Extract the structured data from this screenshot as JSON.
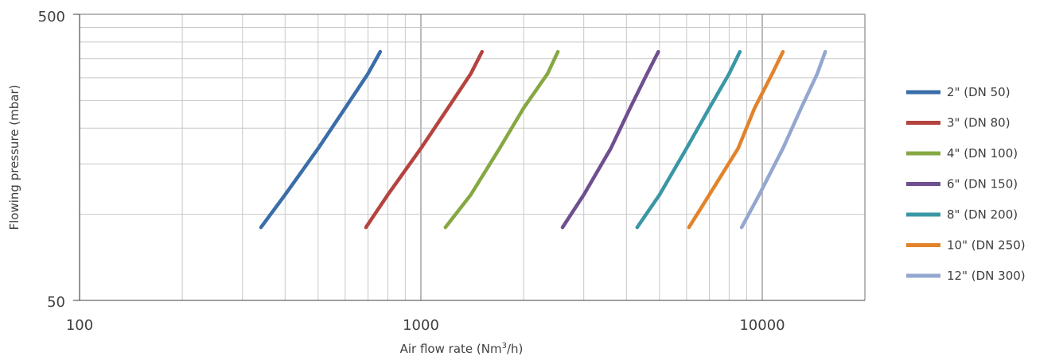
{
  "chart_data": {
    "type": "line",
    "x_scale": "log",
    "y_scale": "log",
    "xlim": [
      100,
      20000
    ],
    "ylim": [
      50,
      500
    ],
    "x_ticks": [
      "100",
      "1000",
      "10000"
    ],
    "y_ticks": [
      "500",
      "50"
    ],
    "xlabel_main": "Air flow rate (Nm",
    "xlabel_sup": "3",
    "xlabel_end": "/h)",
    "ylabel": "Flowing pressure (mbar)",
    "grid": true,
    "legend_position": "right",
    "series": [
      {
        "name": "2\" (DN 50)",
        "color": "#3a6ea8",
        "points": [
          [
            340,
            90
          ],
          [
            400,
            117
          ],
          [
            500,
            170
          ],
          [
            600,
            235
          ],
          [
            700,
            310
          ],
          [
            760,
            370
          ]
        ]
      },
      {
        "name": "3\" (DN 80)",
        "color": "#b5433f",
        "points": [
          [
            690,
            90
          ],
          [
            800,
            117
          ],
          [
            1000,
            170
          ],
          [
            1200,
            235
          ],
          [
            1400,
            310
          ],
          [
            1510,
            370
          ]
        ]
      },
      {
        "name": "4\" (DN 100)",
        "color": "#86a843",
        "points": [
          [
            1180,
            90
          ],
          [
            1400,
            117
          ],
          [
            1700,
            170
          ],
          [
            2000,
            235
          ],
          [
            2350,
            310
          ],
          [
            2520,
            370
          ]
        ]
      },
      {
        "name": "6\" (DN 150)",
        "color": "#6e4f8f",
        "points": [
          [
            2600,
            90
          ],
          [
            3000,
            117
          ],
          [
            3600,
            170
          ],
          [
            4100,
            235
          ],
          [
            4600,
            310
          ],
          [
            4960,
            370
          ]
        ]
      },
      {
        "name": "8\" (DN 200)",
        "color": "#3a97a5",
        "points": [
          [
            4300,
            90
          ],
          [
            5000,
            117
          ],
          [
            6000,
            170
          ],
          [
            7000,
            235
          ],
          [
            8000,
            310
          ],
          [
            8600,
            370
          ]
        ]
      },
      {
        "name": "10\" (DN 250)",
        "color": "#e2832b",
        "points": [
          [
            6100,
            90
          ],
          [
            7000,
            117
          ],
          [
            8500,
            170
          ],
          [
            9500,
            235
          ],
          [
            10700,
            310
          ],
          [
            11500,
            370
          ]
        ]
      },
      {
        "name": "12\" (DN 300)",
        "color": "#93a7cf",
        "points": [
          [
            8700,
            90
          ],
          [
            9800,
            117
          ],
          [
            11500,
            170
          ],
          [
            13000,
            235
          ],
          [
            14500,
            310
          ],
          [
            15300,
            370
          ]
        ]
      }
    ]
  }
}
